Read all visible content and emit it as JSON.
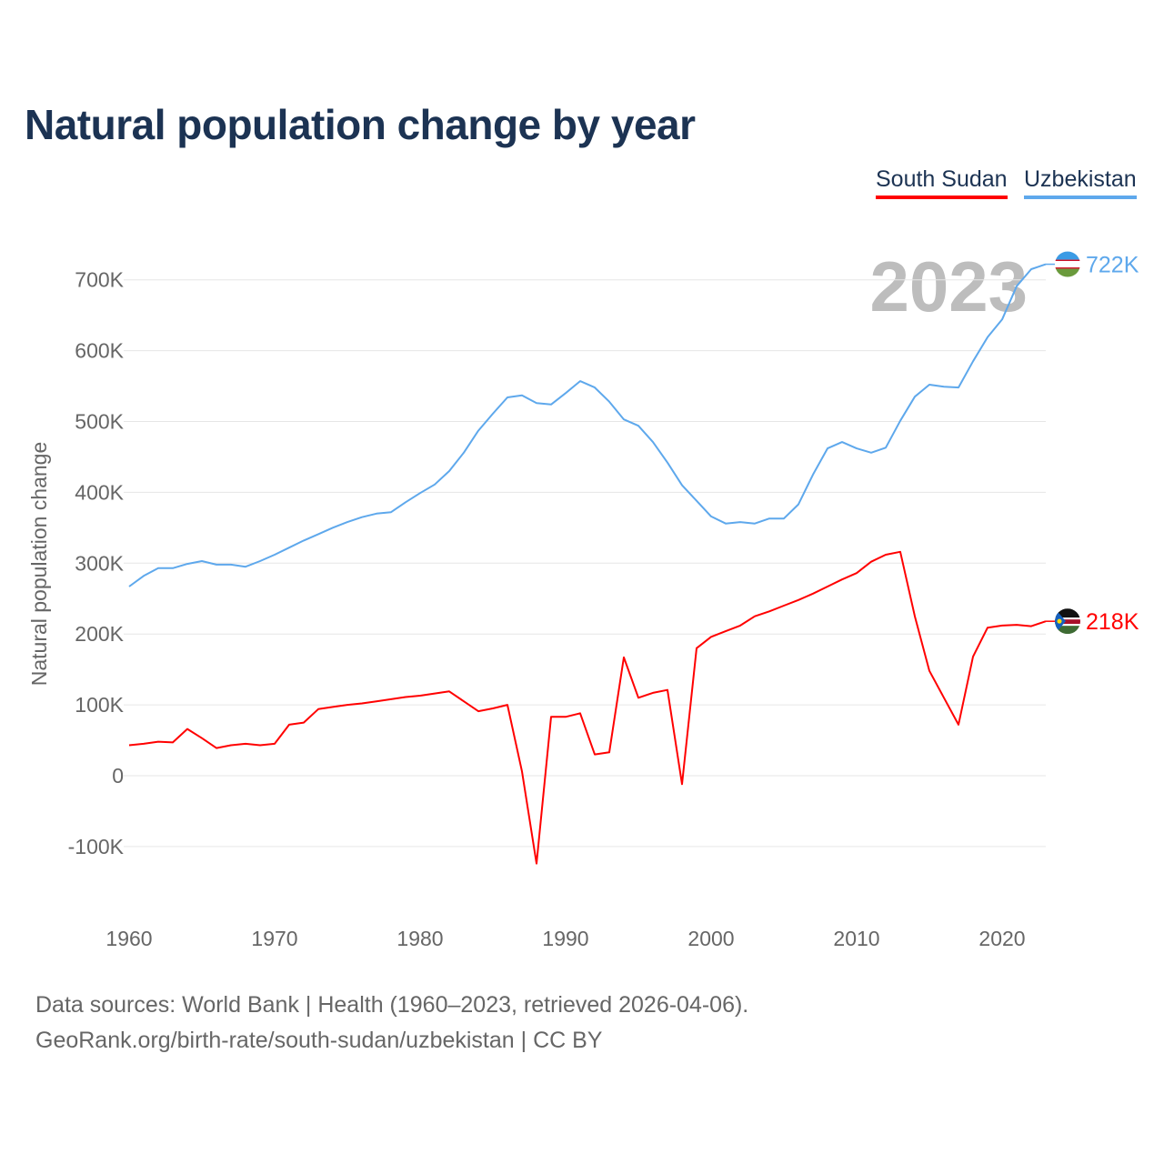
{
  "chart_data": {
    "type": "line",
    "title": "Natural population change by year",
    "xlabel": "",
    "ylabel": "Natural population change",
    "xlim": [
      1960,
      2023
    ],
    "ylim": [
      -200000,
      760000
    ],
    "x_ticks": [
      "1960",
      "1970",
      "1980",
      "1990",
      "2000",
      "2010",
      "2020"
    ],
    "y_ticks": [
      {
        "value": -100000,
        "label": "-100K"
      },
      {
        "value": 0,
        "label": "0"
      },
      {
        "value": 100000,
        "label": "100K"
      },
      {
        "value": 200000,
        "label": "200K"
      },
      {
        "value": 300000,
        "label": "300K"
      },
      {
        "value": 400000,
        "label": "400K"
      },
      {
        "value": 500000,
        "label": "500K"
      },
      {
        "value": 600000,
        "label": "600K"
      },
      {
        "value": 700000,
        "label": "700K"
      }
    ],
    "grid": true,
    "legend_position": "top-right",
    "year_watermark": "2023",
    "x": [
      1960,
      1961,
      1962,
      1963,
      1964,
      1965,
      1966,
      1967,
      1968,
      1969,
      1970,
      1971,
      1972,
      1973,
      1974,
      1975,
      1976,
      1977,
      1978,
      1979,
      1980,
      1981,
      1982,
      1983,
      1984,
      1985,
      1986,
      1987,
      1988,
      1989,
      1990,
      1991,
      1992,
      1993,
      1994,
      1995,
      1996,
      1997,
      1998,
      1999,
      2000,
      2001,
      2002,
      2003,
      2004,
      2005,
      2006,
      2007,
      2008,
      2009,
      2010,
      2011,
      2012,
      2013,
      2014,
      2015,
      2016,
      2017,
      2018,
      2019,
      2020,
      2021,
      2022,
      2023
    ],
    "series": [
      {
        "name": "South Sudan",
        "color": "#ff0000",
        "end_label": "218K",
        "values": [
          43000,
          45000,
          48000,
          47000,
          66000,
          53000,
          39000,
          43000,
          45000,
          43000,
          45000,
          72000,
          75000,
          94000,
          97000,
          100000,
          102000,
          105000,
          108000,
          111000,
          113000,
          116000,
          119000,
          105000,
          91000,
          95000,
          100000,
          6000,
          -124000,
          83000,
          83000,
          88000,
          30000,
          33000,
          167000,
          110000,
          117000,
          121000,
          -12000,
          180000,
          196000,
          204000,
          212000,
          225000,
          232000,
          240000,
          248000,
          257000,
          267000,
          277000,
          286000,
          302000,
          312000,
          316000,
          225000,
          148000,
          110000,
          72000,
          168000,
          209000,
          212000,
          213000,
          211000,
          218000
        ]
      },
      {
        "name": "Uzbekistan",
        "color": "#5ea8ec",
        "end_label": "722K",
        "values": [
          267000,
          282000,
          293000,
          293000,
          299000,
          303000,
          298000,
          298000,
          295000,
          303000,
          312000,
          322000,
          332000,
          341000,
          350000,
          358000,
          365000,
          370000,
          372000,
          386000,
          399000,
          411000,
          430000,
          456000,
          487000,
          511000,
          534000,
          537000,
          526000,
          524000,
          540000,
          557000,
          548000,
          528000,
          503000,
          494000,
          471000,
          442000,
          410000,
          388000,
          366000,
          356000,
          358000,
          356000,
          363000,
          363000,
          383000,
          425000,
          462000,
          471000,
          462000,
          456000,
          463000,
          501000,
          535000,
          552000,
          549000,
          548000,
          585000,
          619000,
          644000,
          691000,
          715000,
          722000
        ]
      }
    ]
  },
  "footer": {
    "line1": "Data sources: World Bank | Health (1960–2023, retrieved 2026-04-06).",
    "line2": "GeoRank.org/birth-rate/south-sudan/uzbekistan | CC BY"
  }
}
